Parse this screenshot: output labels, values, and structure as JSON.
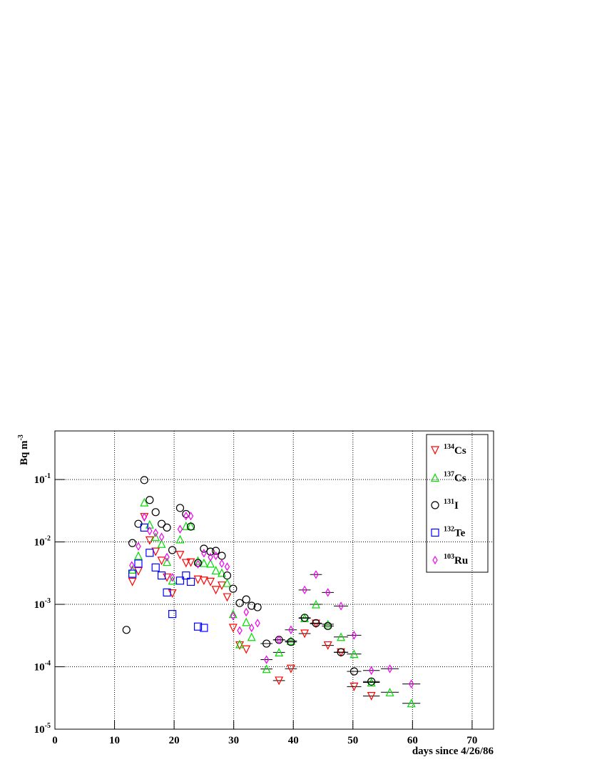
{
  "chart_data": {
    "type": "scatter",
    "xlabel": "days since 4/26/86",
    "ylabel": "Bq m",
    "ylabel_exponent": "-3",
    "log_y": true,
    "grid": true,
    "legend": "upper-right",
    "xlim": [
      0,
      73.6
    ],
    "ylim": [
      1e-05,
      0.6
    ],
    "xticks": [
      0,
      10,
      20,
      30,
      40,
      50,
      60,
      70
    ],
    "yticks": [
      {
        "value": 1e-05,
        "label": "10",
        "exponent": "-5"
      },
      {
        "value": 0.0001,
        "label": "10",
        "exponent": "-4"
      },
      {
        "value": 0.001,
        "label": "10",
        "exponent": "-3"
      },
      {
        "value": 0.01,
        "label": "10",
        "exponent": "-2"
      },
      {
        "value": 0.1,
        "label": "10",
        "exponent": "-1"
      }
    ],
    "series": [
      {
        "mass": "134",
        "name": "Cs",
        "color": "#ff0000",
        "marker": "triangle-down",
        "x": [
          13,
          14,
          15,
          15.9,
          16.9,
          17.9,
          18.8,
          19.7,
          21,
          22,
          22.8,
          24,
          25,
          26.1,
          27,
          28,
          28.9,
          29.9,
          31,
          32.1,
          37.6,
          39.6,
          41.9,
          43.8,
          45.8,
          48,
          50.2,
          53.1
        ],
        "values": [
          0.0023,
          0.0034,
          0.025,
          0.0106,
          0.007,
          0.005,
          0.0027,
          0.0015,
          0.0062,
          0.0046,
          0.0047,
          0.0025,
          0.0024,
          0.0023,
          0.0017,
          0.002,
          0.0013,
          0.00042,
          0.00022,
          0.00019,
          6e-05,
          9.3e-05,
          0.00034,
          0.00049,
          0.00022,
          0.00017,
          4.8e-05,
          3.4e-05
        ],
        "x_err": [
          null,
          null,
          null,
          null,
          null,
          null,
          null,
          null,
          null,
          null,
          null,
          null,
          null,
          null,
          null,
          null,
          null,
          null,
          null,
          null,
          1,
          1,
          1,
          1,
          1,
          1.2,
          1.2,
          1.4
        ]
      },
      {
        "mass": "137",
        "name": "Cs",
        "color": "#00dd00",
        "marker": "triangle-up",
        "x": [
          13,
          14,
          15,
          15.9,
          16.9,
          17.9,
          18.8,
          19.7,
          21,
          22,
          22.8,
          24,
          25,
          26.1,
          27,
          28,
          28.9,
          29.9,
          31,
          32.1,
          33,
          35.5,
          37.6,
          39.6,
          41.9,
          43.8,
          45.8,
          48,
          50.2,
          53.1,
          56.2,
          59.8
        ],
        "values": [
          0.0036,
          0.006,
          0.043,
          0.019,
          0.012,
          0.0093,
          0.0048,
          0.0024,
          0.011,
          0.018,
          0.018,
          0.005,
          0.0046,
          0.0045,
          0.0035,
          0.0032,
          0.0022,
          0.0007,
          0.00023,
          0.00052,
          0.0003,
          9.2e-05,
          0.00017,
          0.00026,
          0.0006,
          0.001,
          0.00048,
          0.0003,
          0.00016,
          5.6e-05,
          3.9e-05,
          2.6e-05
        ],
        "x_err": [
          null,
          null,
          null,
          null,
          null,
          null,
          null,
          null,
          null,
          null,
          null,
          null,
          null,
          null,
          null,
          null,
          null,
          null,
          null,
          null,
          null,
          1,
          1,
          1,
          1,
          1,
          1,
          1.2,
          1.2,
          1.4,
          1.5,
          1.5
        ]
      },
      {
        "mass": "131",
        "name": "I",
        "color": "#000000",
        "marker": "circle",
        "x": [
          12,
          13,
          14,
          15,
          15.9,
          16.9,
          17.9,
          18.8,
          19.7,
          21,
          22,
          22.8,
          24,
          25,
          26.1,
          27,
          28,
          28.9,
          29.9,
          31,
          32.1,
          33,
          34,
          35.5,
          37.6,
          39.6,
          41.9,
          43.8,
          45.8,
          48,
          50.2,
          53.1
        ],
        "values": [
          0.00039,
          0.0096,
          0.0195,
          0.098,
          0.047,
          0.03,
          0.0195,
          0.017,
          0.0074,
          0.035,
          0.028,
          0.0176,
          0.0046,
          0.0078,
          0.007,
          0.0072,
          0.006,
          0.0029,
          0.00178,
          0.00105,
          0.0012,
          0.00095,
          0.0009,
          0.000235,
          0.00027,
          0.00025,
          0.00061,
          0.0005,
          0.00045,
          0.000171,
          8.43e-05,
          5.8e-05
        ],
        "x_err": [
          null,
          null,
          null,
          null,
          null,
          null,
          null,
          null,
          null,
          null,
          null,
          null,
          null,
          null,
          null,
          null,
          null,
          null,
          null,
          null,
          null,
          null,
          null,
          1,
          1,
          1,
          1,
          1,
          1,
          1.2,
          1.2,
          1.4
        ]
      },
      {
        "mass": "132",
        "name": "Te",
        "color": "#0000ff",
        "marker": "square",
        "x": [
          13,
          14,
          15,
          15.9,
          16.9,
          17.9,
          18.8,
          19.7,
          21,
          22,
          22.8,
          24,
          25
        ],
        "values": [
          0.0031,
          0.0045,
          0.017,
          0.0067,
          0.0039,
          0.0029,
          0.00155,
          0.0007,
          0.0024,
          0.0029,
          0.0023,
          0.00044,
          0.00042
        ],
        "x_err": [
          null,
          null,
          null,
          null,
          null,
          null,
          null,
          null,
          null,
          null,
          null,
          null,
          null
        ]
      },
      {
        "mass": "103",
        "name": "Ru",
        "color": "#ee00ee",
        "marker": "diamond",
        "x": [
          12.9,
          14,
          15,
          15.9,
          16.9,
          17.9,
          18.8,
          19.7,
          21,
          22,
          22.8,
          24,
          25,
          26.1,
          27,
          28,
          28.9,
          29.9,
          31,
          32.1,
          33,
          34,
          35.5,
          37.6,
          39.6,
          41.9,
          43.8,
          45.8,
          48,
          50.2,
          53.1,
          56.2,
          59.8
        ],
        "values": [
          0.0042,
          0.0085,
          0.025,
          0.015,
          0.014,
          0.012,
          0.0057,
          0.0027,
          0.016,
          0.026,
          0.026,
          0.0044,
          0.0066,
          0.0057,
          0.006,
          0.0045,
          0.004,
          0.00065,
          0.00038,
          0.00075,
          0.00042,
          0.0005,
          0.00013,
          0.00027,
          0.00039,
          0.0017,
          0.003,
          0.00155,
          0.00094,
          0.00032,
          8.7e-05,
          9.3e-05,
          5.3e-05
        ],
        "x_err": [
          null,
          null,
          null,
          null,
          null,
          null,
          null,
          null,
          null,
          null,
          null,
          null,
          null,
          null,
          null,
          null,
          null,
          null,
          null,
          null,
          null,
          null,
          1,
          1,
          1,
          1,
          1,
          1,
          1.2,
          1.2,
          1.4,
          1.5,
          1.5
        ]
      }
    ]
  }
}
